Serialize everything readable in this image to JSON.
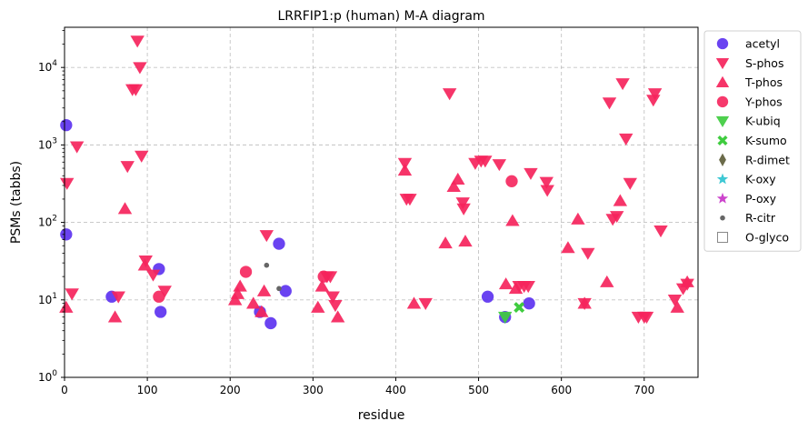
{
  "chart_data": {
    "type": "scatter",
    "title": "LRRFIP1:p (human) M-A diagram",
    "xlabel": "residue",
    "ylabel": "PSMs (tabbs)",
    "xlim": [
      0,
      765
    ],
    "ylim": [
      1,
      33000
    ],
    "yscale": "log",
    "grid": true,
    "legend_position": "outside-right-top",
    "x_ticks": [
      0,
      100,
      200,
      300,
      400,
      500,
      600,
      700
    ],
    "x_tick_labels": [
      "0",
      "100",
      "200",
      "300",
      "400",
      "500",
      "600",
      "700"
    ],
    "y_ticks": [
      1,
      10,
      100,
      1000,
      10000
    ],
    "y_tick_labels": [
      "10^0",
      "10^1",
      "10^2",
      "10^3",
      "10^4"
    ],
    "series": [
      {
        "name": "acetyl",
        "marker": "circle",
        "color": "#5a2ff0",
        "points": [
          [
            2,
            1800
          ],
          [
            2,
            70
          ],
          [
            57,
            11
          ],
          [
            114,
            25
          ],
          [
            116,
            7
          ],
          [
            236,
            7
          ],
          [
            249,
            5
          ],
          [
            259,
            53
          ],
          [
            267,
            13
          ],
          [
            511,
            11
          ],
          [
            532,
            6
          ],
          [
            561,
            9
          ]
        ]
      },
      {
        "name": "S-phos",
        "marker": "triangle-down",
        "color": "#f5245c",
        "points": [
          [
            3,
            320
          ],
          [
            9,
            12
          ],
          [
            15,
            950
          ],
          [
            65,
            11
          ],
          [
            76,
            530
          ],
          [
            82,
            5200
          ],
          [
            86,
            5200
          ],
          [
            88,
            22000
          ],
          [
            91,
            10000
          ],
          [
            93,
            720
          ],
          [
            98,
            32
          ],
          [
            107,
            21
          ],
          [
            121,
            13
          ],
          [
            244,
            68
          ],
          [
            317,
            20
          ],
          [
            321,
            20
          ],
          [
            324,
            11
          ],
          [
            327,
            8.5
          ],
          [
            411,
            580
          ],
          [
            413,
            200
          ],
          [
            417,
            200
          ],
          [
            436,
            9
          ],
          [
            465,
            4600
          ],
          [
            481,
            180
          ],
          [
            482,
            150
          ],
          [
            496,
            580
          ],
          [
            503,
            620
          ],
          [
            508,
            620
          ],
          [
            525,
            560
          ],
          [
            549,
            15
          ],
          [
            555,
            15
          ],
          [
            560,
            15
          ],
          [
            563,
            430
          ],
          [
            582,
            330
          ],
          [
            583,
            260
          ],
          [
            628,
            9
          ],
          [
            632,
            40
          ],
          [
            658,
            3500
          ],
          [
            662,
            110
          ],
          [
            667,
            120
          ],
          [
            674,
            6200
          ],
          [
            678,
            1200
          ],
          [
            683,
            320
          ],
          [
            693,
            6
          ],
          [
            700,
            6
          ],
          [
            703,
            6
          ],
          [
            711,
            3800
          ],
          [
            713,
            4600
          ],
          [
            720,
            78
          ],
          [
            737,
            10
          ],
          [
            747,
            14
          ],
          [
            752,
            16
          ]
        ]
      },
      {
        "name": "T-phos",
        "marker": "triangle-up",
        "color": "#f5245c",
        "points": [
          [
            2,
            8
          ],
          [
            61,
            6
          ],
          [
            73,
            150
          ],
          [
            97,
            28
          ],
          [
            206,
            10
          ],
          [
            209,
            12
          ],
          [
            212,
            15
          ],
          [
            228,
            9
          ],
          [
            238,
            7
          ],
          [
            241,
            13
          ],
          [
            306,
            8
          ],
          [
            311,
            15
          ],
          [
            330,
            6
          ],
          [
            411,
            470
          ],
          [
            422,
            9
          ],
          [
            460,
            54
          ],
          [
            470,
            290
          ],
          [
            475,
            360
          ],
          [
            484,
            57
          ],
          [
            533,
            16
          ],
          [
            541,
            105
          ],
          [
            545,
            14
          ],
          [
            608,
            47
          ],
          [
            620,
            110
          ],
          [
            628,
            9
          ],
          [
            655,
            17
          ],
          [
            671,
            190
          ],
          [
            740,
            8
          ],
          [
            752,
            17
          ]
        ]
      },
      {
        "name": "Y-phos",
        "marker": "circle",
        "color": "#f5245c",
        "points": [
          [
            114,
            11
          ],
          [
            219,
            23
          ],
          [
            313,
            20
          ],
          [
            540,
            340
          ]
        ]
      },
      {
        "name": "K-ubiq",
        "marker": "triangle-down",
        "color": "#3fcc3f",
        "points": [
          [
            532,
            6
          ]
        ]
      },
      {
        "name": "K-sumo",
        "marker": "x",
        "color": "#3fcc3f",
        "points": [
          [
            549,
            8
          ]
        ]
      },
      {
        "name": "R-dimet",
        "marker": "diamond",
        "color": "#6b6b4a",
        "points": []
      },
      {
        "name": "K-oxy",
        "marker": "star",
        "color": "#3ec8d4",
        "points": []
      },
      {
        "name": "P-oxy",
        "marker": "star",
        "color": "#cc44cc",
        "points": []
      },
      {
        "name": "R-citr",
        "marker": "small-circle",
        "color": "#666666",
        "points": [
          [
            244,
            28
          ],
          [
            259,
            14
          ]
        ]
      },
      {
        "name": "O-glyco",
        "marker": "open-square",
        "color": "#888888",
        "points": []
      }
    ]
  }
}
